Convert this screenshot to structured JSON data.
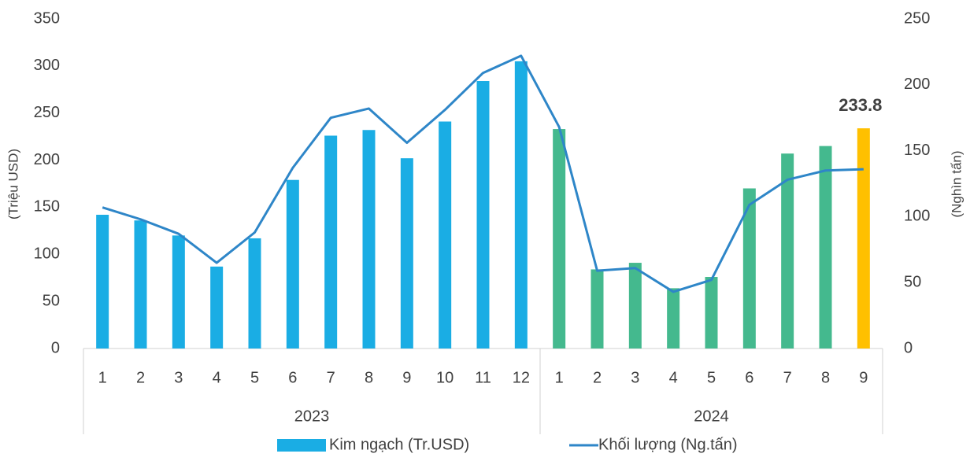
{
  "chart_data": {
    "type": "bar_line",
    "categories": [
      "1",
      "2",
      "3",
      "4",
      "5",
      "6",
      "7",
      "8",
      "9",
      "10",
      "11",
      "12",
      "1",
      "2",
      "3",
      "4",
      "5",
      "6",
      "7",
      "8",
      "9"
    ],
    "groups": [
      {
        "name": "2023",
        "span": 12
      },
      {
        "name": "2024",
        "span": 9
      }
    ],
    "series": [
      {
        "name": "Kim ngạch (Tr.USD)",
        "type": "bar",
        "color": "#1AADE4",
        "colors": [
          "#1AADE4",
          "#1AADE4",
          "#1AADE4",
          "#1AADE4",
          "#1AADE4",
          "#1AADE4",
          "#1AADE4",
          "#1AADE4",
          "#1AADE4",
          "#1AADE4",
          "#1AADE4",
          "#1AADE4",
          "#44B98E",
          "#44B98E",
          "#44B98E",
          "#44B98E",
          "#44B98E",
          "#44B98E",
          "#44B98E",
          "#44B98E",
          "#FFC000"
        ],
        "values": [
          142,
          136,
          120,
          87,
          117,
          179,
          226,
          232,
          202,
          241,
          284,
          305,
          233,
          84,
          91,
          64,
          76,
          170,
          207,
          215,
          233.8
        ],
        "value_labels": [
          null,
          null,
          null,
          null,
          null,
          null,
          null,
          null,
          null,
          null,
          null,
          null,
          null,
          null,
          null,
          null,
          null,
          null,
          null,
          null,
          "233.8"
        ]
      },
      {
        "name": "Khối lượng (Ng.tấn)",
        "type": "line",
        "axis": "y2",
        "color": "#2E86C8",
        "values": [
          107,
          98,
          87,
          65,
          88,
          137,
          175,
          182,
          156,
          181,
          209,
          222,
          168,
          59,
          61,
          43,
          52,
          109,
          128,
          135,
          136
        ]
      }
    ],
    "ylabel": "(Triệu USD)",
    "y2label": "(Nghìn tấn)",
    "ylim": [
      0,
      350
    ],
    "yticks": [
      0,
      50,
      100,
      150,
      200,
      250,
      300,
      350
    ],
    "y2lim": [
      0,
      250
    ],
    "y2ticks": [
      0,
      50,
      100,
      150,
      200,
      250
    ],
    "legend": "bottom"
  }
}
